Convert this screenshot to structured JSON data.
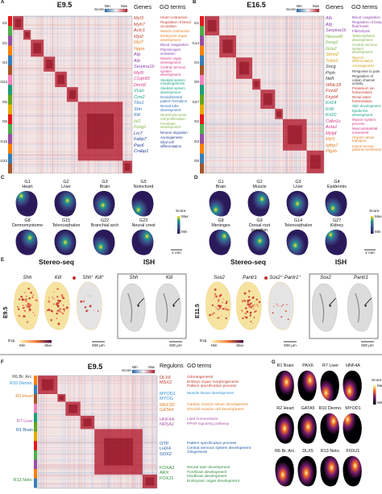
{
  "panel_a": {
    "letter": "A",
    "stage": "E9.5",
    "legend": {
      "title": "Score",
      "min": "Min",
      "max": "Max"
    },
    "genes_header": "Genes",
    "go_header": "GO terms",
    "clusters": [
      "G1",
      "G2",
      "G3",
      "G23",
      "G5",
      "G8",
      "G15",
      "G22"
    ],
    "groups": [
      {
        "color": "#c0392b",
        "genes": [
          "Myl3",
          "Myh7",
          "Actc1",
          "Myl2"
        ],
        "go_terms": [
          "Heart contraction",
          "Regulation of blood circulation"
        ]
      },
      {
        "color": "#e67e22",
        "genes": [
          "Myl7",
          "Nppa"
        ],
        "go_terms": [
          "Muscle contraction",
          "Embryonic organ development"
        ]
      },
      {
        "color": "#8e44ad",
        "genes": [
          "Afp",
          "Alb",
          "Serpina1b"
        ],
        "go_terms": [
          "Blood coagulation",
          "Plasminogen activation"
        ]
      },
      {
        "color": "#d63384",
        "genes": [
          "Myl9",
          "C1qtnf3",
          "Dmrt2"
        ],
        "go_terms": [
          "Muscle organ development",
          "Central nervous system development"
        ]
      },
      {
        "color": "#16a085",
        "genes": [
          "Vcan",
          "Crm2"
        ],
        "go_terms": [
          "Skeletal system morphogenesis",
          "Skeletal system development"
        ]
      },
      {
        "color": "#2c6fbb",
        "genes": [
          "Tbx1",
          "Shh",
          "Kitl"
        ],
        "go_terms": [
          "Dorsal/ventral pattern formation",
          "Neural tube development"
        ]
      },
      {
        "color": "#7cb342",
        "genes": [
          "Isl1",
          "Foxg1"
        ],
        "go_terms": [
          "Neural precursor cell proliferation",
          "Forebrain development"
        ]
      },
      {
        "color": "#1f3a93",
        "genes": [
          "Lrc7",
          "Fabp7",
          "Pax6",
          "Crabp1"
        ],
        "go_terms": [
          "Neuron migration",
          "Axonogenesis",
          "Glial cell differentiation"
        ]
      }
    ]
  },
  "panel_b": {
    "letter": "B",
    "stage": "E16.5",
    "legend": {
      "title": "Score",
      "min": "Min",
      "max": "Max"
    },
    "genes_header": "Genes",
    "go_header": "GO terms",
    "clusters": [
      "G1",
      "G14",
      "G4",
      "G9",
      "G27",
      "G2",
      "G3",
      "G8"
    ],
    "groups": [
      {
        "color": "#8e44ad",
        "genes": [
          "Alb",
          "Afp",
          "Serpina1b"
        ],
        "go_terms": [
          "Blood coagulation",
          "Regulation of body fluid levels",
          "Fibrinolysis"
        ]
      },
      {
        "color": "#7cb342",
        "genes": [
          "Neurod6",
          "Foxg1",
          "Gria2"
        ],
        "go_terms": [
          "Telencephalon development",
          "Central nervous system development"
        ]
      },
      {
        "color": "#d4a017",
        "genes": [
          "Stmn2",
          "Tubb3"
        ],
        "go_terms": [
          "Neuron differentiation",
          "Axonogenesis"
        ]
      },
      {
        "color": "#333333",
        "genes": [
          "Sncg",
          "Prph",
          "Nefl"
        ],
        "go_terms": [
          "Response to pain",
          "Regulation of cation channel activity"
        ]
      },
      {
        "color": "#c0392b",
        "genes": [
          "Wfdc18",
          "Fxyd2",
          "Fxyd4"
        ],
        "go_terms": [
          "Potassium ion homeostasis",
          "Renal water homeostasis"
        ]
      },
      {
        "color": "#16a085",
        "genes": [
          "Krt14",
          "Krt5",
          "Krt10"
        ],
        "go_terms": [
          "Skin development",
          "Epidermis development"
        ]
      },
      {
        "color": "#d63384",
        "genes": [
          "Cdkn1c",
          "Acta1",
          "Mylpf"
        ],
        "go_terms": [
          "Muscle system process",
          "Musculoskeletal movement"
        ]
      },
      {
        "color": "#e67e22",
        "genes": [
          "Myl1",
          "Igfbp7",
          "Ptgds"
        ],
        "go_terms": [
          "Organic anion transport",
          "Import across plasma membrane"
        ]
      }
    ]
  },
  "panel_c": {
    "letter": "C",
    "tiles": [
      {
        "cluster": "G1",
        "tissue": "Heart"
      },
      {
        "cluster": "G2",
        "tissue": "Liver"
      },
      {
        "cluster": "G3",
        "tissue": "Brain"
      },
      {
        "cluster": "G5",
        "tissue": "Notochord"
      },
      {
        "cluster": "G8",
        "tissue": "Dermomyotome"
      },
      {
        "cluster": "G15",
        "tissue": "Telencephalon"
      },
      {
        "cluster": "G22",
        "tissue": "Branchial arch"
      },
      {
        "cluster": "G23",
        "tissue": "Neural crest"
      }
    ],
    "legend": {
      "title": "Score",
      "max": "Max",
      "min": "Min"
    },
    "scale": "1 mm"
  },
  "panel_d": {
    "letter": "D",
    "tiles": [
      {
        "cluster": "G1",
        "tissue": "Brain"
      },
      {
        "cluster": "G2",
        "tissue": "Muscle"
      },
      {
        "cluster": "G3",
        "tissue": "Liver"
      },
      {
        "cluster": "G4",
        "tissue": "Epidermis"
      },
      {
        "cluster": "G8",
        "tissue": "Meninges"
      },
      {
        "cluster": "G9",
        "tissue": "Dorsal root ganglion"
      },
      {
        "cluster": "G14",
        "tissue": "Telencephalon"
      },
      {
        "cluster": "G27",
        "tissue": "Kidney"
      }
    ],
    "legend": {
      "title": "Score",
      "max": "Max",
      "min": "Min"
    },
    "scale": "2 mm"
  },
  "panel_e": {
    "letter": "E",
    "sides": [
      {
        "stage": "E9.5",
        "method_a": "Stereo-seq",
        "method_b": "ISH",
        "genes": [
          "Shh",
          "Kitl"
        ],
        "overlay": "Shh⁺ Kitl⁺",
        "ish_genes": [
          "Shh",
          "Kitl"
        ],
        "legend": {
          "title": "Exp.",
          "min": "Min",
          "max": "Max"
        },
        "scales": [
          "500 μm",
          "500 μm"
        ]
      },
      {
        "stage": "E11.5",
        "method_a": "Stereo-seq",
        "method_b": "ISH",
        "genes": [
          "Sox2",
          "Pantr1"
        ],
        "overlay": "Sox2⁺ Pantr1⁺",
        "ish_genes": [
          "Sox2",
          "Pantr1"
        ],
        "legend": {
          "title": "Exp.",
          "min": "Min",
          "max": "Max"
        },
        "scales": [
          "500 μm",
          "500 μm"
        ]
      }
    ]
  },
  "panel_f": {
    "letter": "F",
    "stage": "E9.5",
    "legend": {
      "title": "Score",
      "min": "Min",
      "max": "Max"
    },
    "regulons_header": "Regulons",
    "go_header": "GO terms",
    "row_groups": [
      "R6 Br. Arc.",
      "R10 Dermo.",
      "R2 Heart",
      "R7 Liver",
      "R1 Brain",
      "R13 Noto."
    ],
    "groups": [
      {
        "color": "#c0392b",
        "regulons": [
          "DLX6",
          "MSX2"
        ],
        "go_terms": [
          "Odontogenesis",
          "Embryo organ morphogenesis",
          "Pattern specification process"
        ]
      },
      {
        "color": "#2c8fd6",
        "regulons": [
          "MYOD1",
          "MYOG"
        ],
        "go_terms": [
          "Muscle tissue development"
        ]
      },
      {
        "color": "#e67e22",
        "regulons": [
          "MEF2D",
          "GATA4"
        ],
        "go_terms": [
          "Cardiac muscle tissue development",
          "Smooth muscle cell development"
        ]
      },
      {
        "color": "#b05aa8",
        "regulons": [
          "HNF4A",
          "NR5A2"
        ],
        "go_terms": [
          "Lipid homeostasis",
          "PPAR signaling pathway"
        ]
      },
      {
        "color": "#1f5fa8",
        "regulons": [
          "OTP",
          "LHX4",
          "SOX2"
        ],
        "go_terms": [
          "Pattern specification process",
          "Central nervous system development",
          "Gliogenesis"
        ]
      },
      {
        "color": "#2e8b3e",
        "regulons": [
          "FOXA2",
          "ARX",
          "FOXJ1"
        ],
        "go_terms": [
          "Neural tube development",
          "Forebrain development",
          "Hindbrain development",
          "Embryonic organ development"
        ]
      }
    ]
  },
  "panel_g": {
    "letter": "G",
    "tiles": [
      {
        "group": "R1 Brain",
        "gene": "PAX6"
      },
      {
        "group": "R7 Liver",
        "gene": "HNF4A"
      },
      {
        "group": "R2 Heart",
        "gene": "GATA5"
      },
      {
        "group": "R10 Dermo.",
        "gene": "MYOD1"
      },
      {
        "group": "R6 Br. Arc.",
        "gene": "DLX5"
      },
      {
        "group": "R13 Noto.",
        "gene": "FOXJ1"
      }
    ],
    "legend": {
      "title": "Score",
      "max": "Max",
      "min": "Min"
    }
  }
}
